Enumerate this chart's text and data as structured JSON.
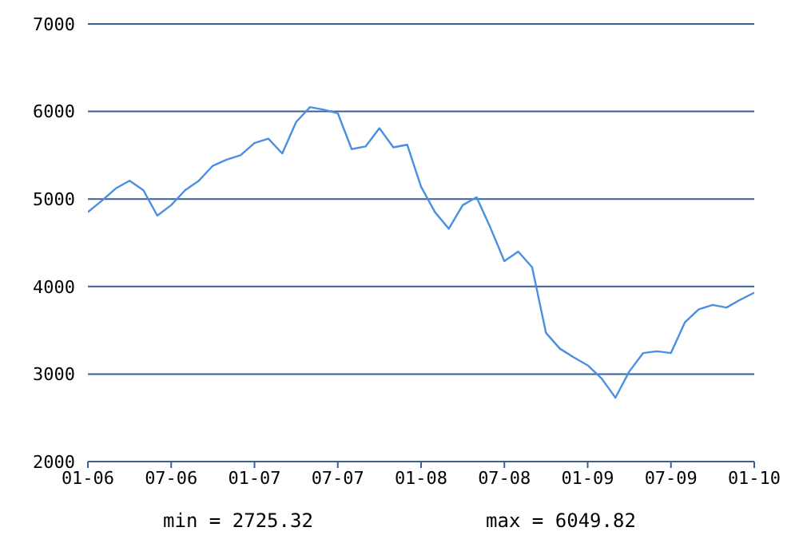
{
  "chart_data": {
    "type": "line",
    "x": [
      "2006-01",
      "2006-02",
      "2006-03",
      "2006-04",
      "2006-05",
      "2006-06",
      "2006-07",
      "2006-08",
      "2006-09",
      "2006-10",
      "2006-11",
      "2006-12",
      "2007-01",
      "2007-02",
      "2007-03",
      "2007-04",
      "2007-05",
      "2007-06",
      "2007-07",
      "2007-08",
      "2007-09",
      "2007-10",
      "2007-11",
      "2007-12",
      "2008-01",
      "2008-02",
      "2008-03",
      "2008-04",
      "2008-05",
      "2008-06",
      "2008-07",
      "2008-08",
      "2008-09",
      "2008-10",
      "2008-11",
      "2008-12",
      "2009-01",
      "2009-02",
      "2009-03",
      "2009-04",
      "2009-05",
      "2009-06",
      "2009-07",
      "2009-08",
      "2009-09",
      "2009-10",
      "2009-11",
      "2009-12",
      "2010-01"
    ],
    "series": [
      {
        "color": "#4a90e2",
        "values": [
          4850,
          4980,
          5120,
          5210,
          5100,
          4810,
          4930,
          5100,
          5210,
          5380,
          5450,
          5500,
          5640,
          5690,
          5520,
          5880,
          6050,
          6020,
          5980,
          5570,
          5600,
          5810,
          5590,
          5620,
          5140,
          4850,
          4660,
          4930,
          5020,
          4670,
          4290,
          4400,
          4220,
          3470,
          3290,
          3190,
          3100,
          2950,
          2730,
          3030,
          3240,
          3260,
          3240,
          3590,
          3740,
          3790,
          3760,
          3850,
          3930
        ]
      }
    ],
    "xlim": [
      "2006-01",
      "2010-01"
    ],
    "xticks": [
      {
        "value": "2006-01",
        "label": "01-06"
      },
      {
        "value": "2006-07",
        "label": "07-06"
      },
      {
        "value": "2007-01",
        "label": "01-07"
      },
      {
        "value": "2007-07",
        "label": "07-07"
      },
      {
        "value": "2008-01",
        "label": "01-08"
      },
      {
        "value": "2008-07",
        "label": "07-08"
      },
      {
        "value": "2009-01",
        "label": "01-09"
      },
      {
        "value": "2009-07",
        "label": "07-09"
      },
      {
        "value": "2010-01",
        "label": "01-10"
      }
    ],
    "ylim": [
      2000,
      7000
    ],
    "yticks": [
      2000,
      3000,
      4000,
      5000,
      6000,
      7000
    ],
    "grid": "y",
    "marker": "none",
    "line_style": "solid",
    "annotations": [
      "min = 2725.32",
      "max = 6049.82"
    ]
  }
}
